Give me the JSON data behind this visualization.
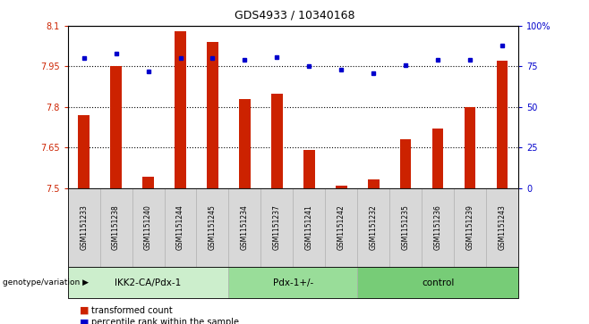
{
  "title": "GDS4933 / 10340168",
  "samples": [
    "GSM1151233",
    "GSM1151238",
    "GSM1151240",
    "GSM1151244",
    "GSM1151245",
    "GSM1151234",
    "GSM1151237",
    "GSM1151241",
    "GSM1151242",
    "GSM1151232",
    "GSM1151235",
    "GSM1151236",
    "GSM1151239",
    "GSM1151243"
  ],
  "bar_values": [
    7.77,
    7.95,
    7.54,
    8.08,
    8.04,
    7.83,
    7.85,
    7.64,
    7.51,
    7.53,
    7.68,
    7.72,
    7.8,
    7.97
  ],
  "percentile_values": [
    80,
    83,
    72,
    80,
    80,
    79,
    81,
    75,
    73,
    71,
    76,
    79,
    79,
    88
  ],
  "bar_color": "#cc2200",
  "dot_color": "#0000cc",
  "ylim_left": [
    7.5,
    8.1
  ],
  "ylim_right": [
    0,
    100
  ],
  "yticks_left": [
    7.5,
    7.65,
    7.8,
    7.95,
    8.1
  ],
  "yticks_right": [
    0,
    25,
    50,
    75,
    100
  ],
  "ytick_labels_left": [
    "7.5",
    "7.65",
    "7.8",
    "7.95",
    "8.1"
  ],
  "ytick_labels_right": [
    "0",
    "25",
    "50",
    "75",
    "100%"
  ],
  "hlines": [
    7.65,
    7.8,
    7.95
  ],
  "groups": [
    {
      "label": "IKK2-CA/Pdx-1",
      "start": 0,
      "end": 5
    },
    {
      "label": "Pdx-1+/-",
      "start": 5,
      "end": 9
    },
    {
      "label": "control",
      "start": 9,
      "end": 14
    }
  ],
  "group_colors": [
    "#cceecc",
    "#99dd99",
    "#77cc77"
  ],
  "sample_box_color": "#d8d8d8",
  "genotype_label": "genotype/variation",
  "legend_bar_label": "transformed count",
  "legend_dot_label": "percentile rank within the sample",
  "bar_width": 0.35
}
